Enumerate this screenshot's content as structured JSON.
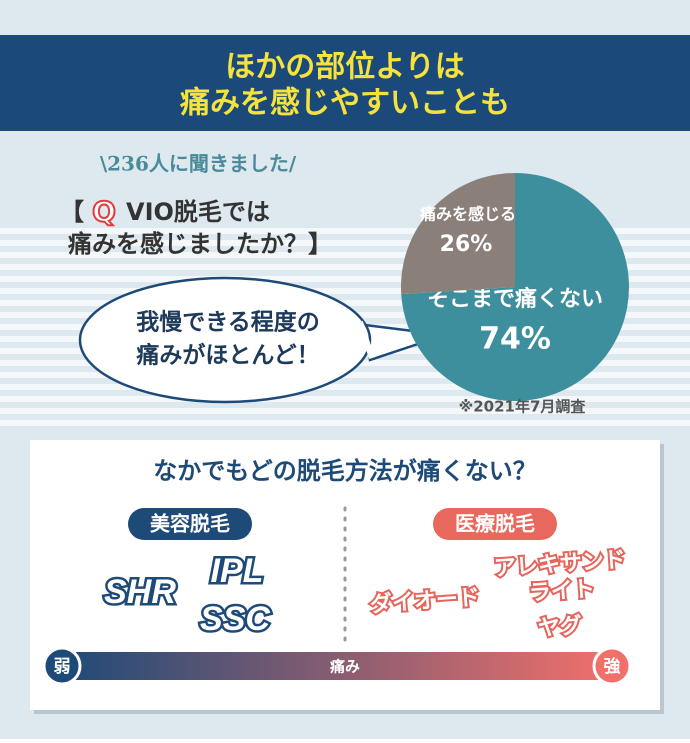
{
  "header": {
    "title_line1": "ほかの部位よりは",
    "title_line2": "痛みを感じやすいことも"
  },
  "survey": {
    "intro": "\\236人に聞きました/",
    "open": "【",
    "q": "Q",
    "line1": "VIO脱毛では",
    "line2": "痛みを感じましたか？】"
  },
  "bubble": {
    "line1": "我慢できる程度の",
    "line2": "痛みがほとんど！"
  },
  "chart_data": {
    "type": "pie",
    "categories": [
      "そこまで痛くない",
      "痛みを感じる"
    ],
    "values": [
      74,
      26
    ],
    "value_labels": [
      "74%",
      "26%"
    ],
    "colors": [
      "#3d8f9e",
      "#8b8079"
    ]
  },
  "note": "※2021年7月調査",
  "comparison": {
    "title": "なかでもどの脱毛方法が痛くない？",
    "beauty": {
      "label": "美容脱毛",
      "methods": [
        "SHR",
        "IPL",
        "SSC"
      ]
    },
    "medical": {
      "label": "医療脱毛",
      "methods": [
        "ダイオード",
        "アレキサンド",
        "ライト",
        "ヤグ"
      ]
    },
    "scale": {
      "low": "弱",
      "mid": "痛み",
      "high": "強"
    }
  }
}
